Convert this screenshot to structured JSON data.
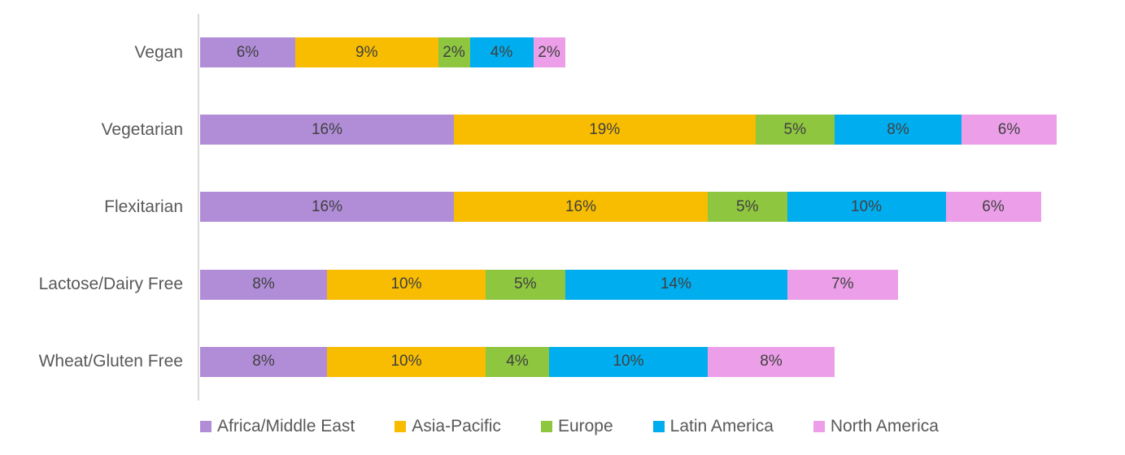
{
  "chart_data": {
    "type": "bar",
    "orientation": "horizontal-stacked",
    "title": "",
    "xlabel": "",
    "ylabel": "",
    "categories": [
      "Vegan",
      "Vegetarian",
      "Flexitarian",
      "Lactose/Dairy Free",
      "Wheat/Gluten Free"
    ],
    "series": [
      {
        "name": "Africa/Middle East",
        "color": "#B18DD8",
        "values": [
          6,
          16,
          16,
          8,
          8
        ]
      },
      {
        "name": "Asia-Pacific",
        "color": "#F8BD00",
        "values": [
          9,
          19,
          16,
          10,
          10
        ]
      },
      {
        "name": "Europe",
        "color": "#8EC63F",
        "values": [
          2,
          5,
          5,
          5,
          4
        ]
      },
      {
        "name": "Latin America",
        "color": "#00AEEF",
        "values": [
          4,
          8,
          10,
          14,
          10
        ]
      },
      {
        "name": "North America",
        "color": "#EC9FE8",
        "values": [
          2,
          6,
          6,
          7,
          8
        ]
      }
    ],
    "data_label_format": "{value}%",
    "data_labels_visible": true,
    "legend_position": "bottom",
    "grid": false,
    "xlim": [
      0,
      58
    ],
    "colors": {
      "axis_line": "#D9D9D9",
      "category_label_text": "#595959",
      "data_label_text": "#404040",
      "legend_text": "#595959",
      "background": "#FFFFFF"
    }
  }
}
